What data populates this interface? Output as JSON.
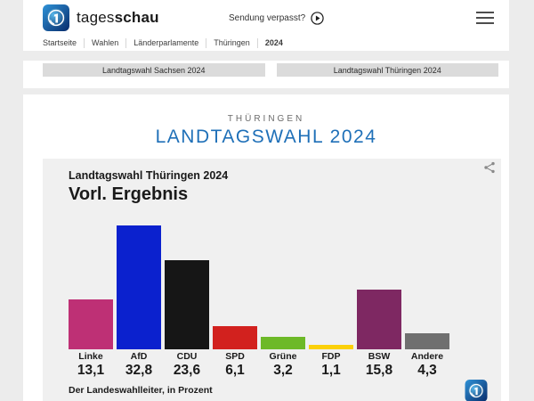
{
  "header": {
    "brand": {
      "name_regular": "tages",
      "name_bold": "schau"
    },
    "sendung_verpasst_label": "Sendung verpasst?",
    "breadcrumb": [
      "Startseite",
      "Wahlen",
      "Länderparlamente",
      "Thüringen",
      "2024"
    ]
  },
  "nav_buttons": {
    "sachsen_label": "Landtagswahl Sachsen 2024",
    "thueringen_label": "Landtagswahl Thüringen 2024"
  },
  "page": {
    "kicker": "THÜRINGEN",
    "title": "LANDTAGSWAHL 2024",
    "title_color": "#1F70B8"
  },
  "chart_data": {
    "type": "bar",
    "title": "Landtagswahl Thüringen 2024",
    "subtitle": "Vorl. Ergebnis",
    "source": "Der Landeswahlleiter, in Prozent",
    "unit": "Prozent",
    "categories": [
      "Linke",
      "AfD",
      "CDU",
      "SPD",
      "Grüne",
      "FDP",
      "BSW",
      "Andere"
    ],
    "values": [
      13.1,
      32.8,
      23.6,
      6.1,
      3.2,
      1.1,
      15.8,
      4.3
    ],
    "value_labels": [
      "13,1",
      "32,8",
      "23,6",
      "6,1",
      "3,2",
      "1,1",
      "15,8",
      "4,3"
    ],
    "colors": [
      "#BE3075",
      "#0B21CE",
      "#161616",
      "#D2211E",
      "#6DB928",
      "#FBD008",
      "#7E2862",
      "#6F6F6F"
    ],
    "ylim": [
      0,
      35
    ],
    "grid": false,
    "legend": "none"
  }
}
